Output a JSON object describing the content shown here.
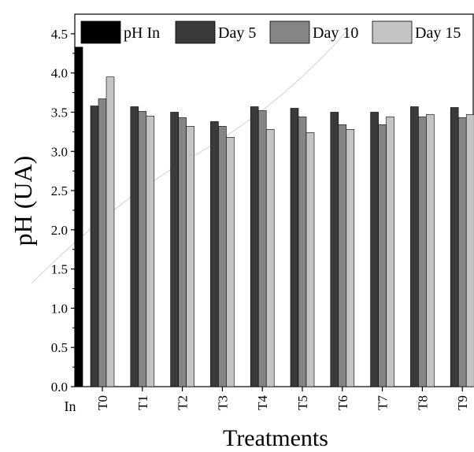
{
  "chart_data": {
    "type": "bar",
    "title": "",
    "xlabel": "Treatments",
    "ylabel": "pH (UA)",
    "ylim": [
      0,
      4.75
    ],
    "yticks": [
      "0.0",
      "0.5",
      "1.0",
      "1.5",
      "2.0",
      "2.5",
      "3.0",
      "3.5",
      "4.0",
      "4.5"
    ],
    "grid": false,
    "legend_position": "top",
    "initial": {
      "category": "In",
      "series": "pH In",
      "value": 4.33,
      "color": "#000000"
    },
    "categories": [
      "T0",
      "T1",
      "T2",
      "T3",
      "T4",
      "T5",
      "T6",
      "T7",
      "T8",
      "T9"
    ],
    "series": [
      {
        "name": "Day 5",
        "color": "#3a3a3a",
        "values": [
          3.58,
          3.57,
          3.5,
          3.38,
          3.57,
          3.55,
          3.5,
          3.5,
          3.57,
          3.56
        ]
      },
      {
        "name": "Day 10",
        "color": "#858585",
        "values": [
          3.67,
          3.51,
          3.43,
          3.32,
          3.52,
          3.44,
          3.34,
          3.34,
          3.44,
          3.43
        ]
      },
      {
        "name": "Day 15",
        "color": "#c4c4c4",
        "values": [
          3.95,
          3.45,
          3.32,
          3.18,
          3.28,
          3.24,
          3.28,
          3.44,
          3.47,
          3.47
        ]
      }
    ]
  }
}
